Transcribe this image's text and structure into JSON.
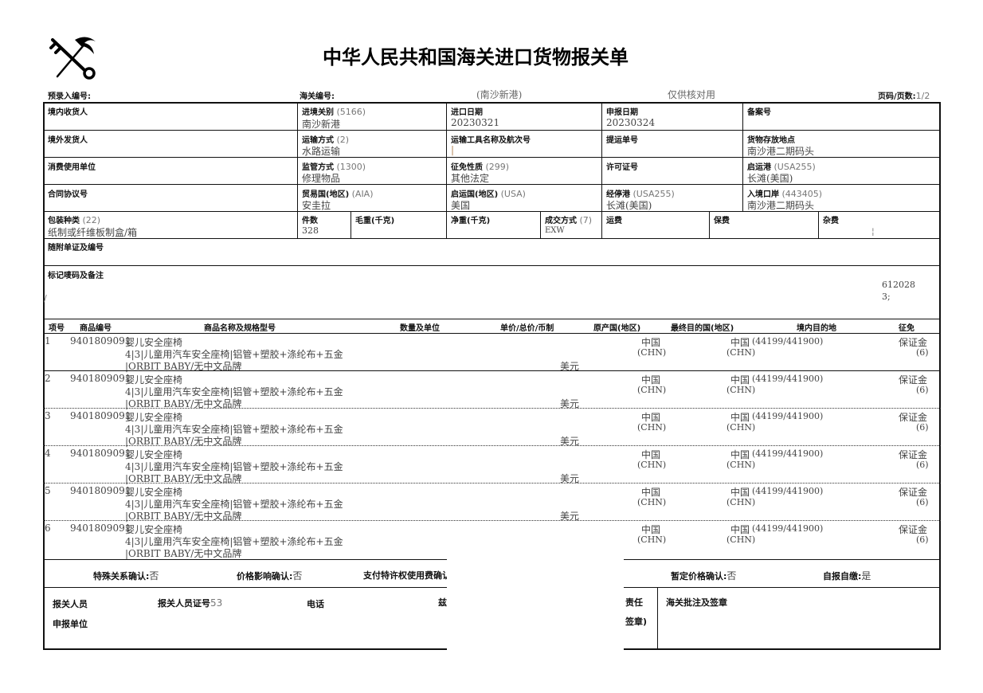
{
  "header": {
    "title": "中华人民共和国海关进口货物报关单",
    "preentry_label": "预录入编号:",
    "customs_no_label": "海关编号:",
    "port_note": "(南沙新港)",
    "verify_note": "仅供核对用",
    "page_label": "页码/页数:",
    "page_value": "1/2"
  },
  "fields": {
    "consignee_label": "境内收货人",
    "entry_customs_label": "进境关别",
    "entry_customs_code": "(5166)",
    "entry_customs_value": "南沙新港",
    "import_date_label": "进口日期",
    "import_date_value": "20230321",
    "declare_date_label": "申报日期",
    "declare_date_value": "20230324",
    "record_no_label": "备案号",
    "shipper_label": "境外发货人",
    "transport_mode_label": "运输方式",
    "transport_mode_code": "(2)",
    "transport_mode_value": "水路运输",
    "vessel_label": "运输工具名称及航次号",
    "vessel_value": "|",
    "bl_label": "提运单号",
    "storage_label": "货物存放地点",
    "storage_value": "南沙港二期码头",
    "consumer_label": "消费使用单位",
    "supervision_label": "监管方式",
    "supervision_code": "(1300)",
    "supervision_value": "修理物品",
    "levy_label": "征免性质",
    "levy_code": "(299)",
    "levy_value": "其他法定",
    "license_label": "许可证号",
    "departure_port_label": "启运港",
    "departure_port_code": "(USA255)",
    "departure_port_value": "长滩(美国)",
    "contract_label": "合同协议号",
    "trade_country_label": "贸易国(地区)",
    "trade_country_code": "(AIA)",
    "trade_country_value": "安圭拉",
    "origin_country_label": "启运国(地区)",
    "origin_country_code": "(USA)",
    "origin_country_value": "美国",
    "transit_port_label": "经停港",
    "transit_port_code": "(USA255)",
    "transit_port_value": "长滩(美国)",
    "entry_port_label": "入境口岸",
    "entry_port_code": "(443405)",
    "entry_port_value": "南沙港二期码头",
    "package_label": "包装种类",
    "package_code": "(22)",
    "package_value": "纸制或纤维板制盒/箱",
    "pieces_label": "件数",
    "pieces_value": "328",
    "gross_label": "毛重(千克)",
    "net_label": "净重(千克)",
    "deal_label": "成交方式",
    "deal_code": "(7)",
    "deal_value": "EXW",
    "freight_label": "运费",
    "insurance_label": "保费",
    "misc_label": "杂费",
    "misc_value": "¦",
    "docs_label": "随附单证及编号",
    "marks_label": "标记唛码及备注",
    "marks_slash": "/",
    "marks_value1": "612028",
    "marks_value2": "3;"
  },
  "items_header": {
    "no": "项号",
    "code": "商品编号",
    "name": "商品名称及规格型号",
    "qty": "数量及单位",
    "price": "单价/总价/币制",
    "origin": "原产国(地区)",
    "dest": "最终目的国(地区)",
    "domestic": "境内目的地",
    "levy": "征免"
  },
  "items": [
    {
      "no": "1",
      "code": "9401809091",
      "name": "婴儿安全座椅",
      "spec1": "4|3|儿童用汽车安全座椅|铝管+塑胶+涤纶布+五金",
      "spec2": "|ORBIT BABY/无中文品牌",
      "currency": "美元",
      "origin": "中国",
      "origin_code": "(CHN)",
      "dest": "中国",
      "dest_code": "(CHN)",
      "domestic": "(44199/441900)",
      "levy": "保证金",
      "levy_code": "(6)"
    },
    {
      "no": "2",
      "code": "9401809091",
      "name": "婴儿安全座椅",
      "spec1": "4|3|儿童用汽车安全座椅|铝管+塑胶+涤纶布+五金",
      "spec2": "|ORBIT BABY/无中文品牌",
      "currency": "美元",
      "origin": "中国",
      "origin_code": "(CHN)",
      "dest": "中国",
      "dest_code": "(CHN)",
      "domestic": "(44199/441900)",
      "levy": "保证金",
      "levy_code": "(6)"
    },
    {
      "no": "3",
      "code": "9401809091",
      "name": "婴儿安全座椅",
      "spec1": "4|3|儿童用汽车安全座椅|铝管+塑胶+涤纶布+五金",
      "spec2": "|ORBIT BABY/无中文品牌",
      "currency": "美元",
      "origin": "中国",
      "origin_code": "(CHN)",
      "dest": "中国",
      "dest_code": "(CHN)",
      "domestic": "(44199/441900)",
      "levy": "保证金",
      "levy_code": "(6)"
    },
    {
      "no": "4",
      "code": "9401809091",
      "name": "婴儿安全座椅",
      "spec1": "4|3|儿童用汽车安全座椅|铝管+塑胶+涤纶布+五金",
      "spec2": "|ORBIT BABY/无中文品牌",
      "currency": "美元",
      "origin": "中国",
      "origin_code": "(CHN)",
      "dest": "中国",
      "dest_code": "(CHN)",
      "domestic": "(44199/441900)",
      "levy": "保证金",
      "levy_code": "(6)"
    },
    {
      "no": "5",
      "code": "9401809091",
      "name": "婴儿安全座椅",
      "spec1": "4|3|儿童用汽车安全座椅|铝管+塑胶+涤纶布+五金",
      "spec2": "|ORBIT BABY/无中文品牌",
      "currency": "美元",
      "origin": "中国",
      "origin_code": "(CHN)",
      "dest": "中国",
      "dest_code": "(CHN)",
      "domestic": "(44199/441900)",
      "levy": "保证金",
      "levy_code": "(6)"
    },
    {
      "no": "6",
      "code": "9401809091",
      "name": "婴儿安全座椅",
      "spec1": "4|3|儿童用汽车安全座椅|铝管+塑胶+涤纶布+五金",
      "spec2": "|ORBIT BABY/无中文品牌",
      "currency": "",
      "origin": "中国",
      "origin_code": "(CHN)",
      "dest": "中国",
      "dest_code": "(CHN)",
      "domestic": "(44199/441900)",
      "levy": "保证金",
      "levy_code": "(6)"
    }
  ],
  "confirm": {
    "special_label": "特殊关系确认:",
    "special_value": "否",
    "price_label": "价格影响确认:",
    "price_value": "否",
    "royalty_label": "支付特许权使用费确认",
    "provisional_label": "暂定价格确认:",
    "provisional_value": "否",
    "self_label": "自报自缴:",
    "self_value": "是"
  },
  "footer": {
    "declarant_label": "报关人员",
    "declarant_id_label": "报关人员证号",
    "declarant_id_value": "53",
    "phone_label": "电话",
    "partial1": "兹",
    "unit_label": "申报单位",
    "partial2": "责任",
    "partial3": "签章)",
    "customs_sign_label": "海关批注及签章"
  }
}
